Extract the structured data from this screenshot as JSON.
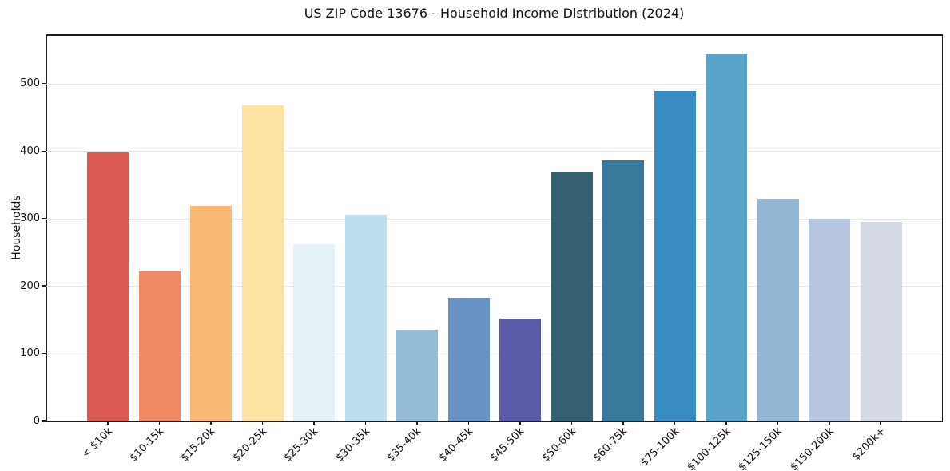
{
  "figure": {
    "background": "#ffffff",
    "spine_color": "#1a1a1a",
    "grid_color": "#e7e7e7"
  },
  "chart_data": {
    "type": "bar",
    "title": "US ZIP Code 13676 - Household Income Distribution (2024)",
    "xlabel": "",
    "ylabel": "Households",
    "categories": [
      "< $10k",
      "$10-15k",
      "$15-20k",
      "$20-25k",
      "$25-30k",
      "$30-35k",
      "$35-40k",
      "$40-45k",
      "$45-50k",
      "$50-60k",
      "$60-75k",
      "$75-100k",
      "$100-125k",
      "$125-150k",
      "$150-200k",
      "$200k+"
    ],
    "values": [
      398,
      221,
      318,
      468,
      262,
      305,
      135,
      182,
      152,
      368,
      386,
      489,
      544,
      329,
      300,
      295
    ],
    "bar_colors": [
      "#d95a52",
      "#f08a66",
      "#fab873",
      "#fde3a1",
      "#e4f1f7",
      "#bddeed",
      "#92bcd8",
      "#6892c4",
      "#5a5caa",
      "#346072",
      "#377a9c",
      "#388cc2",
      "#5ba4c9",
      "#93b6d4",
      "#b6c6de",
      "#d6d9e6"
    ],
    "yticks": [
      0,
      100,
      200,
      300,
      400,
      500
    ],
    "ylim": [
      0,
      572
    ],
    "grid": "horizontal-only",
    "legend": "none"
  }
}
